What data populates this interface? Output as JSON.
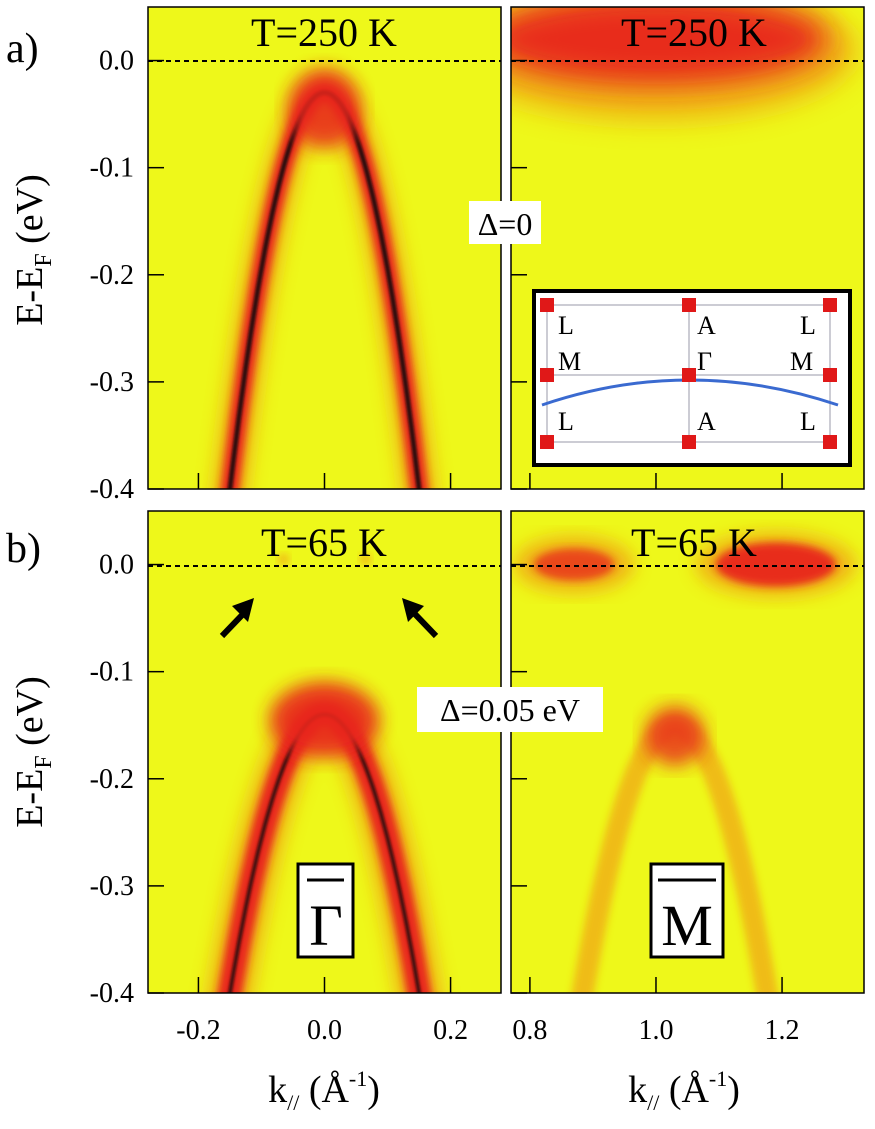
{
  "figure": {
    "panel_a_label": "a)",
    "panel_b_label": "b)",
    "ylabel_main": "E-E",
    "ylabel_sub": "F",
    "ylabel_unit": " (eV)",
    "xlabel_main": "k",
    "xlabel_sub": "//",
    "xlabel_unit_open": " (Å",
    "xlabel_unit_sup": "-1",
    "xlabel_unit_close": ")",
    "annotation_a": "Δ=0",
    "annotation_b": "Δ=0.05 eV",
    "symbol_gamma": "Γ",
    "symbol_m": "M"
  },
  "colors": {
    "background": "#eef81a",
    "band_low": "#f0a818",
    "band_mid": "#e8281e",
    "band_core": "#2a0a08",
    "fermi_line": "#000000",
    "inset_line": "#3a6ad0",
    "inset_point": "#e01818"
  },
  "inset": {
    "top_labels": [
      "L",
      "A",
      "L"
    ],
    "mid_labels": [
      "M",
      "Γ",
      "M"
    ],
    "bottom_labels": [
      "L",
      "A",
      "L"
    ]
  },
  "chart_data": [
    {
      "type": "heatmap",
      "panel": "a-left",
      "title": "T=250 K",
      "x": [
        -0.15,
        -0.1,
        -0.05,
        0.0,
        0.05,
        0.1,
        0.15
      ],
      "y": [
        -0.4,
        -0.235,
        -0.11,
        -0.03,
        -0.11,
        -0.235,
        -0.4
      ],
      "band_top": -0.03,
      "xlim": [
        -0.28,
        0.28
      ],
      "ylim": [
        -0.4,
        0.05
      ],
      "xticks": [
        "-0.2",
        "0.0",
        "0.2"
      ],
      "yticks": [
        "0.0",
        "-0.1",
        "-0.2",
        "-0.3",
        "-0.4"
      ],
      "ytick_values": [
        0.0,
        -0.1,
        -0.2,
        -0.3,
        -0.4
      ]
    },
    {
      "type": "heatmap",
      "panel": "a-right",
      "title": "T=250 K",
      "band_center_k": 1.0,
      "band_bottom": -0.02,
      "xlim": [
        0.77,
        1.33
      ],
      "ylim": [
        -0.4,
        0.05
      ],
      "xticks": [
        "0.8",
        "1.0",
        "1.2"
      ],
      "xtick_values": [
        0.8,
        1.0,
        1.2
      ]
    },
    {
      "type": "heatmap",
      "panel": "b-left",
      "title": "T=65 K",
      "x": [
        -0.15,
        -0.1,
        -0.05,
        0.0,
        0.05,
        0.1,
        0.15
      ],
      "y": [
        -0.4,
        -0.27,
        -0.175,
        -0.14,
        -0.175,
        -0.27,
        -0.4
      ],
      "band_top": -0.14,
      "gap": 0.05,
      "xlim": [
        -0.28,
        0.28
      ],
      "ylim": [
        -0.4,
        0.05
      ],
      "xticks": [
        "-0.2",
        "0.0",
        "0.2"
      ],
      "yticks": [
        "0.0",
        "-0.1",
        "-0.2",
        "-0.3",
        "-0.4"
      ],
      "ytick_values": [
        0.0,
        -0.1,
        -0.2,
        -0.3,
        -0.4
      ]
    },
    {
      "type": "heatmap",
      "panel": "b-right",
      "title": "T=65 K",
      "band_top": -0.15,
      "band_center_k": 1.03,
      "fermi_spots_k": [
        0.87,
        1.19
      ],
      "xlim": [
        0.77,
        1.33
      ],
      "ylim": [
        -0.4,
        0.05
      ],
      "xticks": [
        "0.8",
        "1.0",
        "1.2"
      ],
      "xtick_values": [
        0.8,
        1.0,
        1.2
      ]
    }
  ]
}
